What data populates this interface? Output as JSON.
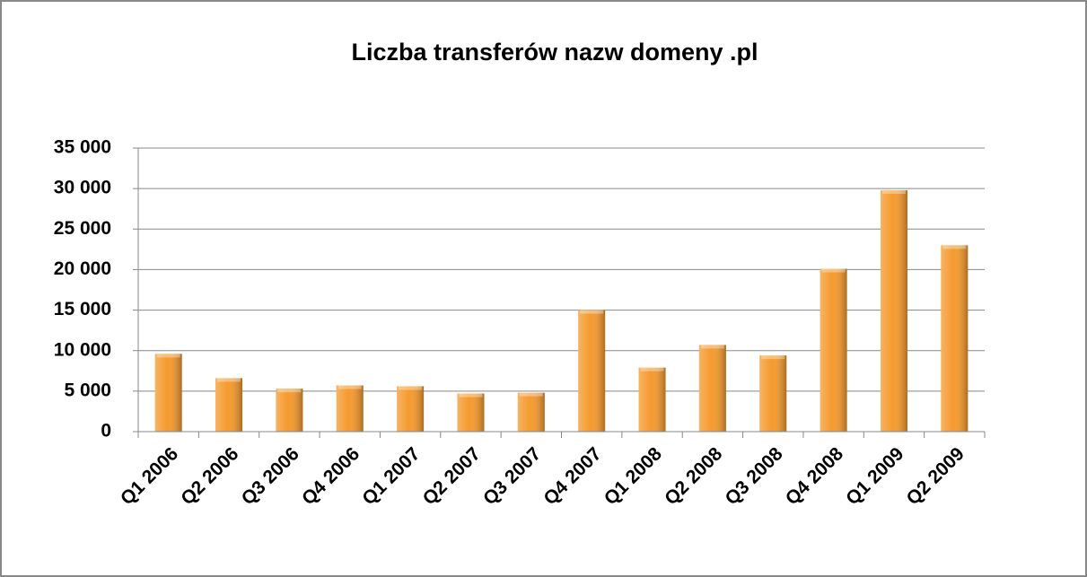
{
  "chart_data": {
    "type": "bar",
    "title": "Liczba transferów nazw domeny .pl",
    "categories": [
      "Q1 2006",
      "Q2 2006",
      "Q3 2006",
      "Q4 2006",
      "Q1 2007",
      "Q2 2007",
      "Q3 2007",
      "Q4 2007",
      "Q1 2008",
      "Q2 2008",
      "Q3 2008",
      "Q4 2008",
      "Q1 2009",
      "Q2 2009"
    ],
    "values": [
      9600,
      6600,
      5300,
      5700,
      5600,
      4700,
      4800,
      15000,
      7900,
      10700,
      9400,
      20100,
      29800,
      23000
    ],
    "color": "#f59a2e",
    "ylim": [
      0,
      35000
    ],
    "yticks": [
      0,
      {
        "value": 5000,
        "label": "5 000"
      },
      {
        "value": 10000,
        "label": "10 000"
      },
      {
        "value": 15000,
        "label": "15 000"
      },
      {
        "value": 20000,
        "label": "20 000"
      },
      {
        "value": 25000,
        "label": "25 000"
      },
      {
        "value": 30000,
        "label": "30 000"
      },
      {
        "value": 35000,
        "label": "35 000"
      }
    ],
    "grid": true
  }
}
